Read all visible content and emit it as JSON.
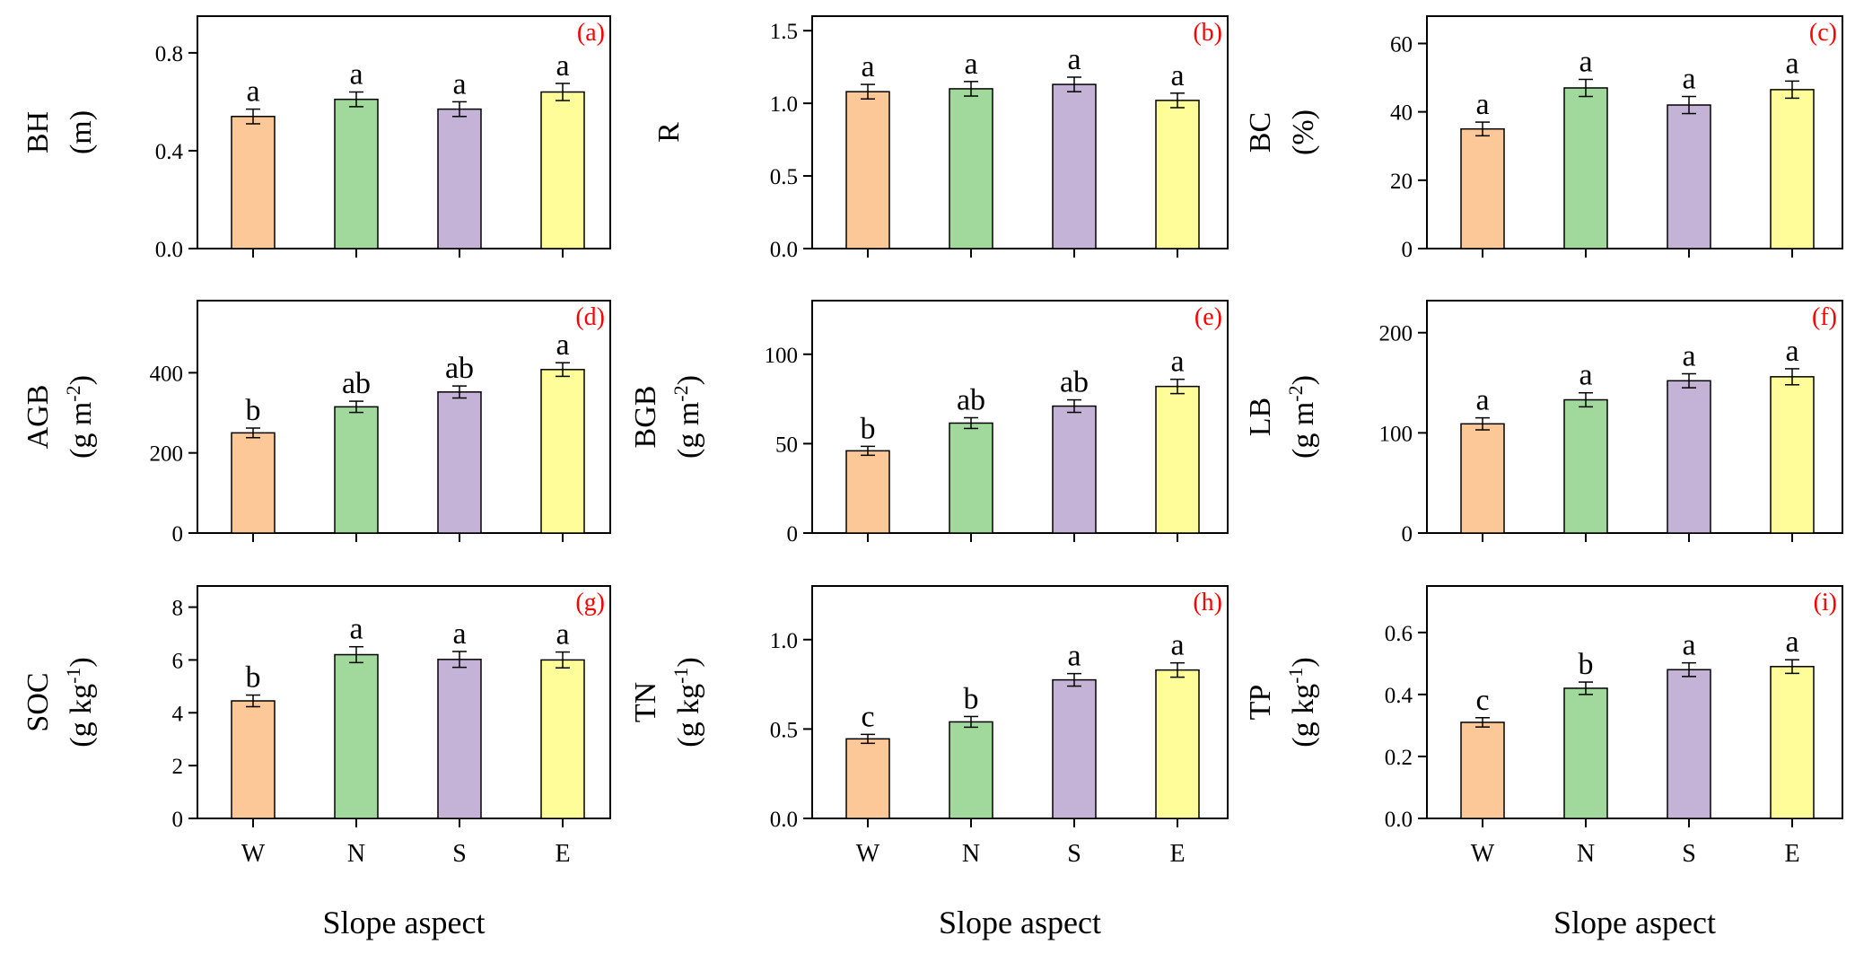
{
  "chart_data": {
    "type": "bar",
    "categories": [
      "W",
      "N",
      "S",
      "E"
    ],
    "xlabel": "Slope aspect",
    "colors": [
      "#fcc898",
      "#a0d99b",
      "#c4b3d6",
      "#fffc9a"
    ],
    "tag_color": "#ff0000",
    "panels": [
      {
        "tag": "(a)",
        "ylabel": [
          "BH",
          "(m)"
        ],
        "ylim": [
          0,
          0.95
        ],
        "ticks": [
          "0.0",
          "0.4",
          "0.8"
        ],
        "tick_values": [
          0,
          0.4,
          0.8
        ],
        "values": [
          0.54,
          0.61,
          0.57,
          0.64
        ],
        "errors": [
          0.03,
          0.03,
          0.03,
          0.035
        ],
        "letters": [
          "a",
          "a",
          "a",
          "a"
        ]
      },
      {
        "tag": "(b)",
        "ylabel": [
          "R"
        ],
        "ylim": [
          0,
          1.6
        ],
        "ticks": [
          "0.0",
          "0.5",
          "1.0",
          "1.5"
        ],
        "tick_values": [
          0,
          0.5,
          1.0,
          1.5
        ],
        "values": [
          1.08,
          1.1,
          1.13,
          1.02
        ],
        "errors": [
          0.05,
          0.05,
          0.05,
          0.05
        ],
        "letters": [
          "a",
          "a",
          "a",
          "a"
        ]
      },
      {
        "tag": "(c)",
        "ylabel": [
          "BC",
          "(%)"
        ],
        "ylim": [
          0,
          68
        ],
        "ticks": [
          "0",
          "20",
          "40",
          "60"
        ],
        "tick_values": [
          0,
          20,
          40,
          60
        ],
        "values": [
          35,
          47,
          42,
          46.5
        ],
        "errors": [
          2,
          2.5,
          2.5,
          2.5
        ],
        "letters": [
          "a",
          "a",
          "a",
          "a"
        ]
      },
      {
        "tag": "(d)",
        "ylabel": [
          "AGB",
          "(g m-2)"
        ],
        "ylim": [
          0,
          580
        ],
        "ticks": [
          "0",
          "200",
          "400"
        ],
        "tick_values": [
          0,
          200,
          400
        ],
        "values": [
          250,
          315,
          352,
          408
        ],
        "errors": [
          12,
          14,
          15,
          17
        ],
        "letters": [
          "b",
          "ab",
          "ab",
          "a"
        ]
      },
      {
        "tag": "(e)",
        "ylabel": [
          "BGB",
          "(g m-2)"
        ],
        "ylim": [
          0,
          130
        ],
        "ticks": [
          "0",
          "50",
          "100"
        ],
        "tick_values": [
          0,
          50,
          100
        ],
        "values": [
          46,
          61.5,
          71,
          82
        ],
        "errors": [
          2.5,
          3,
          3.5,
          4
        ],
        "letters": [
          "b",
          "ab",
          "ab",
          "a"
        ]
      },
      {
        "tag": "(f)",
        "ylabel": [
          "LB",
          "(g m-2)"
        ],
        "ylim": [
          0,
          232
        ],
        "ticks": [
          "0",
          "100",
          "200"
        ],
        "tick_values": [
          0,
          100,
          200
        ],
        "values": [
          109,
          133,
          152,
          156
        ],
        "errors": [
          6,
          7,
          7,
          8
        ],
        "letters": [
          "a",
          "a",
          "a",
          "a"
        ]
      },
      {
        "tag": "(g)",
        "ylabel": [
          "SOC",
          "(g kg-1)"
        ],
        "ylim": [
          0,
          8.8
        ],
        "ticks": [
          "0",
          "2",
          "4",
          "6",
          "8"
        ],
        "tick_values": [
          0,
          2,
          4,
          6,
          8
        ],
        "values": [
          4.45,
          6.2,
          6.02,
          6.0
        ],
        "errors": [
          0.22,
          0.3,
          0.3,
          0.3
        ],
        "letters": [
          "b",
          "a",
          "a",
          "a"
        ]
      },
      {
        "tag": "(h)",
        "ylabel": [
          "TN",
          "(g kg-1)"
        ],
        "ylim": [
          0,
          1.3
        ],
        "ticks": [
          "0.0",
          "0.5",
          "1.0"
        ],
        "tick_values": [
          0,
          0.5,
          1.0
        ],
        "values": [
          0.445,
          0.54,
          0.775,
          0.83
        ],
        "errors": [
          0.025,
          0.03,
          0.035,
          0.04
        ],
        "letters": [
          "c",
          "b",
          "a",
          "a"
        ]
      },
      {
        "tag": "(i)",
        "ylabel": [
          "TP",
          "(g kg-1)"
        ],
        "ylim": [
          0,
          0.75
        ],
        "ticks": [
          "0.0",
          "0.2",
          "0.4",
          "0.6"
        ],
        "tick_values": [
          0,
          0.2,
          0.4,
          0.6
        ],
        "values": [
          0.31,
          0.42,
          0.48,
          0.49
        ],
        "errors": [
          0.015,
          0.02,
          0.022,
          0.022
        ],
        "letters": [
          "c",
          "b",
          "a",
          "a"
        ]
      }
    ]
  }
}
